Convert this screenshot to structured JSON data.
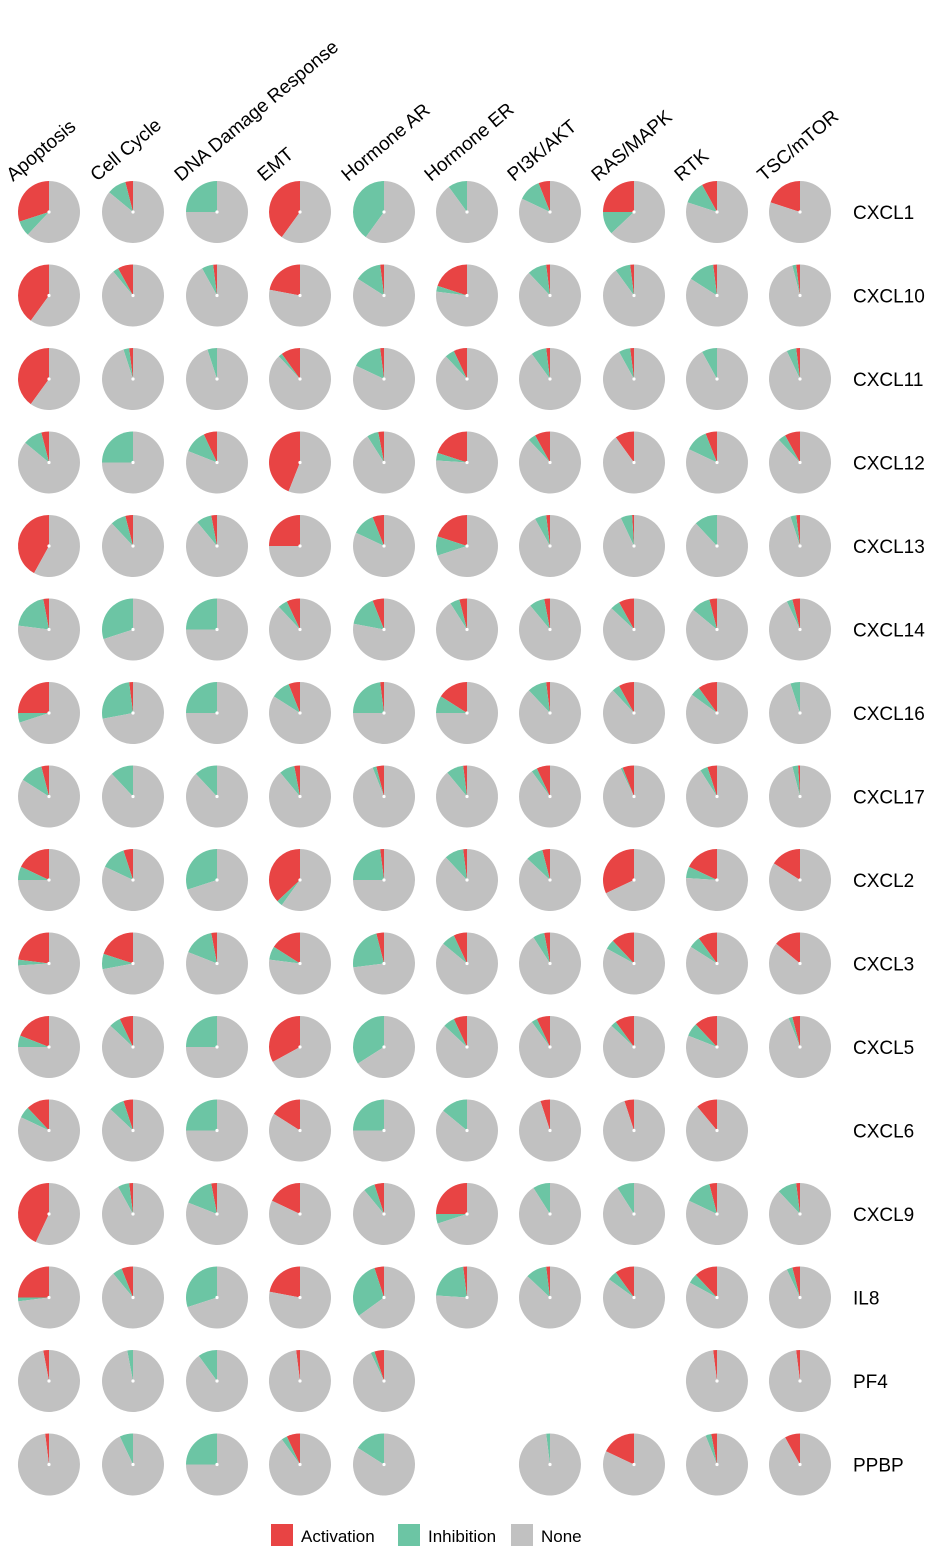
{
  "chart_data": {
    "type": "pie",
    "columns": [
      "Apoptosis",
      "Cell Cycle",
      "DNA Damage Response",
      "EMT",
      "Hormone AR",
      "Hormone ER",
      "PI3K/AKT",
      "RAS/MAPK",
      "RTK",
      "TSC/mTOR"
    ],
    "rows": [
      "CXCL1",
      "CXCL10",
      "CXCL11",
      "CXCL12",
      "CXCL13",
      "CXCL14",
      "CXCL16",
      "CXCL17",
      "CXCL2",
      "CXCL3",
      "CXCL5",
      "CXCL6",
      "CXCL9",
      "IL8",
      "PF4",
      "PPBP"
    ],
    "slice_order": [
      "Activation",
      "Inhibition",
      "None"
    ],
    "values": [
      [
        [
          0.3,
          0.08,
          0.62
        ],
        [
          0.04,
          0.1,
          0.86
        ],
        [
          0,
          0.25,
          0.75
        ],
        [
          0.4,
          0,
          0.6
        ],
        [
          0,
          0.4,
          0.6
        ],
        [
          0,
          0.1,
          0.9
        ],
        [
          0.06,
          0.12,
          0.82
        ],
        [
          0.25,
          0.12,
          0.63
        ],
        [
          0.08,
          0.12,
          0.8
        ],
        [
          0.2,
          0,
          0.8
        ]
      ],
      [
        [
          0.4,
          0,
          0.6
        ],
        [
          0.08,
          0.03,
          0.89
        ],
        [
          0.02,
          0.06,
          0.92
        ],
        [
          0.22,
          0,
          0.78
        ],
        [
          0.02,
          0.14,
          0.84
        ],
        [
          0.2,
          0.03,
          0.77
        ],
        [
          0.02,
          0.1,
          0.88
        ],
        [
          0.02,
          0.08,
          0.9
        ],
        [
          0.02,
          0.14,
          0.84
        ],
        [
          0.02,
          0.02,
          0.96
        ]
      ],
      [
        [
          0.4,
          0,
          0.6
        ],
        [
          0.02,
          0.03,
          0.95
        ],
        [
          0,
          0.05,
          0.95
        ],
        [
          0.1,
          0.02,
          0.88
        ],
        [
          0.02,
          0.16,
          0.82
        ],
        [
          0.07,
          0.05,
          0.88
        ],
        [
          0.02,
          0.08,
          0.9
        ],
        [
          0.02,
          0.06,
          0.92
        ],
        [
          0,
          0.08,
          0.92
        ],
        [
          0.02,
          0.05,
          0.93
        ]
      ],
      [
        [
          0.04,
          0.1,
          0.86
        ],
        [
          0,
          0.25,
          0.75
        ],
        [
          0.07,
          0.12,
          0.81
        ],
        [
          0.44,
          0,
          0.56
        ],
        [
          0.03,
          0.06,
          0.91
        ],
        [
          0.2,
          0.04,
          0.76
        ],
        [
          0.08,
          0.04,
          0.88
        ],
        [
          0.1,
          0,
          0.9
        ],
        [
          0.06,
          0.12,
          0.82
        ],
        [
          0.08,
          0.04,
          0.88
        ]
      ],
      [
        [
          0.42,
          0,
          0.58
        ],
        [
          0.04,
          0.08,
          0.88
        ],
        [
          0.03,
          0.08,
          0.89
        ],
        [
          0.25,
          0,
          0.75
        ],
        [
          0.06,
          0.12,
          0.82
        ],
        [
          0.2,
          0.1,
          0.7
        ],
        [
          0.02,
          0.06,
          0.92
        ],
        [
          0.01,
          0.06,
          0.93
        ],
        [
          0,
          0.12,
          0.88
        ],
        [
          0.02,
          0.03,
          0.95
        ]
      ],
      [
        [
          0.03,
          0.2,
          0.77
        ],
        [
          0,
          0.3,
          0.7
        ],
        [
          0,
          0.25,
          0.75
        ],
        [
          0.07,
          0.05,
          0.88
        ],
        [
          0.06,
          0.16,
          0.78
        ],
        [
          0.04,
          0.05,
          0.91
        ],
        [
          0.03,
          0.08,
          0.89
        ],
        [
          0.08,
          0.05,
          0.87
        ],
        [
          0.04,
          0.1,
          0.86
        ],
        [
          0.04,
          0.03,
          0.93
        ]
      ],
      [
        [
          0.25,
          0.05,
          0.7
        ],
        [
          0.02,
          0.26,
          0.72
        ],
        [
          0,
          0.25,
          0.75
        ],
        [
          0.06,
          0.1,
          0.84
        ],
        [
          0.02,
          0.23,
          0.75
        ],
        [
          0.16,
          0.09,
          0.75
        ],
        [
          0.02,
          0.1,
          0.88
        ],
        [
          0.08,
          0.04,
          0.88
        ],
        [
          0.1,
          0.05,
          0.85
        ],
        [
          0,
          0.05,
          0.95
        ]
      ],
      [
        [
          0.04,
          0.12,
          0.84
        ],
        [
          0,
          0.12,
          0.88
        ],
        [
          0,
          0.12,
          0.88
        ],
        [
          0.03,
          0.08,
          0.89
        ],
        [
          0.04,
          0.02,
          0.94
        ],
        [
          0.02,
          0.09,
          0.89
        ],
        [
          0.07,
          0.03,
          0.9
        ],
        [
          0.06,
          0.01,
          0.93
        ],
        [
          0.05,
          0.04,
          0.91
        ],
        [
          0.01,
          0.03,
          0.96
        ]
      ],
      [
        [
          0.18,
          0.07,
          0.75
        ],
        [
          0.05,
          0.13,
          0.82
        ],
        [
          0,
          0.3,
          0.7
        ],
        [
          0.37,
          0.03,
          0.6
        ],
        [
          0.02,
          0.23,
          0.75
        ],
        [
          0.02,
          0.1,
          0.88
        ],
        [
          0.04,
          0.09,
          0.87
        ],
        [
          0.32,
          0,
          0.68
        ],
        [
          0.18,
          0.06,
          0.76
        ],
        [
          0.16,
          0,
          0.84
        ]
      ],
      [
        [
          0.23,
          0.03,
          0.74
        ],
        [
          0.2,
          0.08,
          0.72
        ],
        [
          0.03,
          0.16,
          0.81
        ],
        [
          0.16,
          0.07,
          0.77
        ],
        [
          0.04,
          0.23,
          0.73
        ],
        [
          0.07,
          0.07,
          0.86
        ],
        [
          0.03,
          0.06,
          0.91
        ],
        [
          0.12,
          0.05,
          0.83
        ],
        [
          0.1,
          0.06,
          0.84
        ],
        [
          0.14,
          0,
          0.86
        ]
      ],
      [
        [
          0.19,
          0.06,
          0.75
        ],
        [
          0.07,
          0.06,
          0.87
        ],
        [
          0,
          0.25,
          0.75
        ],
        [
          0.33,
          0,
          0.67
        ],
        [
          0,
          0.34,
          0.66
        ],
        [
          0.07,
          0.06,
          0.87
        ],
        [
          0.07,
          0.03,
          0.9
        ],
        [
          0.1,
          0.03,
          0.87
        ],
        [
          0.12,
          0.07,
          0.81
        ],
        [
          0.04,
          0.02,
          0.94
        ]
      ],
      [
        [
          0.12,
          0.06,
          0.82
        ],
        [
          0.05,
          0.08,
          0.87
        ],
        [
          0,
          0.25,
          0.75
        ],
        [
          0.16,
          0,
          0.84
        ],
        [
          0,
          0.25,
          0.75
        ],
        [
          0,
          0.14,
          0.86
        ],
        [
          0.05,
          0,
          0.95
        ],
        [
          0.05,
          0,
          0.95
        ],
        [
          0.11,
          0,
          0.89
        ],
        null
      ],
      [
        [
          0.43,
          0,
          0.57
        ],
        [
          0.02,
          0.06,
          0.92
        ],
        [
          0.03,
          0.16,
          0.81
        ],
        [
          0.18,
          0,
          0.82
        ],
        [
          0.05,
          0.06,
          0.89
        ],
        [
          0.25,
          0.05,
          0.7
        ],
        [
          0,
          0.09,
          0.91
        ],
        [
          0,
          0.09,
          0.91
        ],
        [
          0.04,
          0.14,
          0.82
        ],
        [
          0.02,
          0.1,
          0.88
        ]
      ],
      [
        [
          0.25,
          0.02,
          0.73
        ],
        [
          0.06,
          0.05,
          0.89
        ],
        [
          0,
          0.3,
          0.7
        ],
        [
          0.22,
          0,
          0.78
        ],
        [
          0.05,
          0.3,
          0.65
        ],
        [
          0.02,
          0.22,
          0.76
        ],
        [
          0.02,
          0.11,
          0.87
        ],
        [
          0.1,
          0.05,
          0.85
        ],
        [
          0.12,
          0.05,
          0.83
        ],
        [
          0.04,
          0.03,
          0.93
        ]
      ],
      [
        [
          0.03,
          0,
          0.97
        ],
        [
          0,
          0.03,
          0.97
        ],
        [
          0,
          0.1,
          0.9
        ],
        [
          0.02,
          0,
          0.98
        ],
        [
          0.05,
          0.02,
          0.93
        ],
        null,
        null,
        null,
        [
          0.02,
          0,
          0.98
        ],
        [
          0.02,
          0,
          0.98
        ]
      ],
      [
        [
          0.02,
          0,
          0.98
        ],
        [
          0,
          0.07,
          0.93
        ],
        [
          0,
          0.25,
          0.75
        ],
        [
          0.07,
          0.03,
          0.9
        ],
        [
          0,
          0.16,
          0.84
        ],
        null,
        [
          0,
          0.02,
          0.98
        ],
        [
          0.18,
          0,
          0.82
        ],
        [
          0.03,
          0.03,
          0.94
        ],
        [
          0.08,
          0,
          0.92
        ]
      ]
    ],
    "legend": [
      {
        "name": "Activation",
        "color": "#e84444"
      },
      {
        "name": "Inhibition",
        "color": "#6cc5a4"
      },
      {
        "name": "None",
        "color": "#c1c1c1"
      }
    ],
    "legend_placement": "bottom-center"
  }
}
